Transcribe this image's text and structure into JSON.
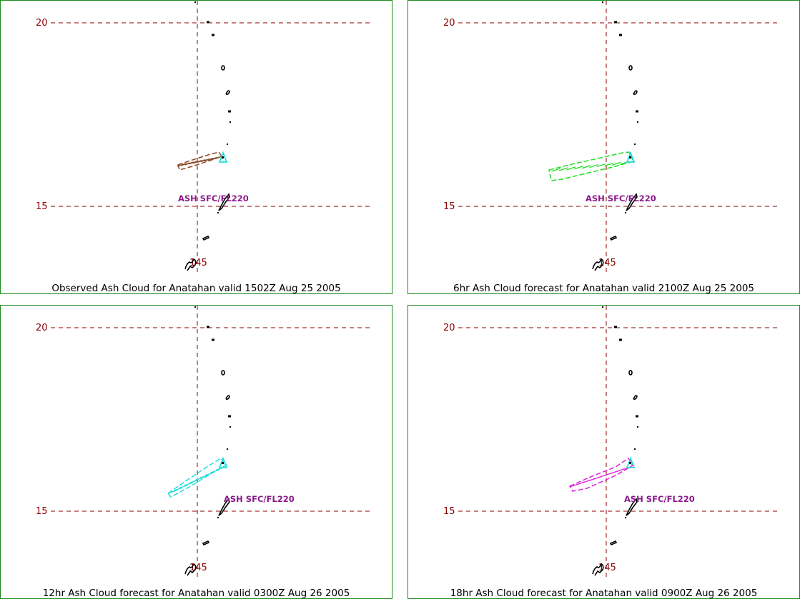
{
  "map": {
    "lat_labels": [
      "20",
      "15"
    ],
    "lon_label": "145",
    "grid_color": "#8b0000",
    "ash_label": "ASH SFC/FL220",
    "ash_label_color": "#8b1a8b"
  },
  "panels": [
    {
      "id": "p1",
      "caption": "Observed Ash Cloud for Anatahan valid 1502Z Aug 25 2005",
      "cloud_color": "#8b4a2b",
      "cloud_name": "observed-ash-cloud"
    },
    {
      "id": "p2",
      "caption": "6hr Ash Cloud forecast for Anatahan valid 2100Z Aug 25 2005",
      "cloud_color": "#22dd22",
      "cloud_name": "6hr-ash-cloud"
    },
    {
      "id": "p3",
      "caption": "12hr Ash Cloud forecast for Anatahan valid 0300Z Aug 26 2005",
      "cloud_color": "#22dddd",
      "cloud_name": "12hr-ash-cloud"
    },
    {
      "id": "p4",
      "caption": "18hr Ash Cloud forecast for Anatahan valid 0900Z Aug 26 2005",
      "cloud_color": "#dd22dd",
      "cloud_name": "18hr-ash-cloud"
    }
  ],
  "volcano": {
    "color": "#22dddd",
    "icon": "volcano-triangle-icon"
  }
}
